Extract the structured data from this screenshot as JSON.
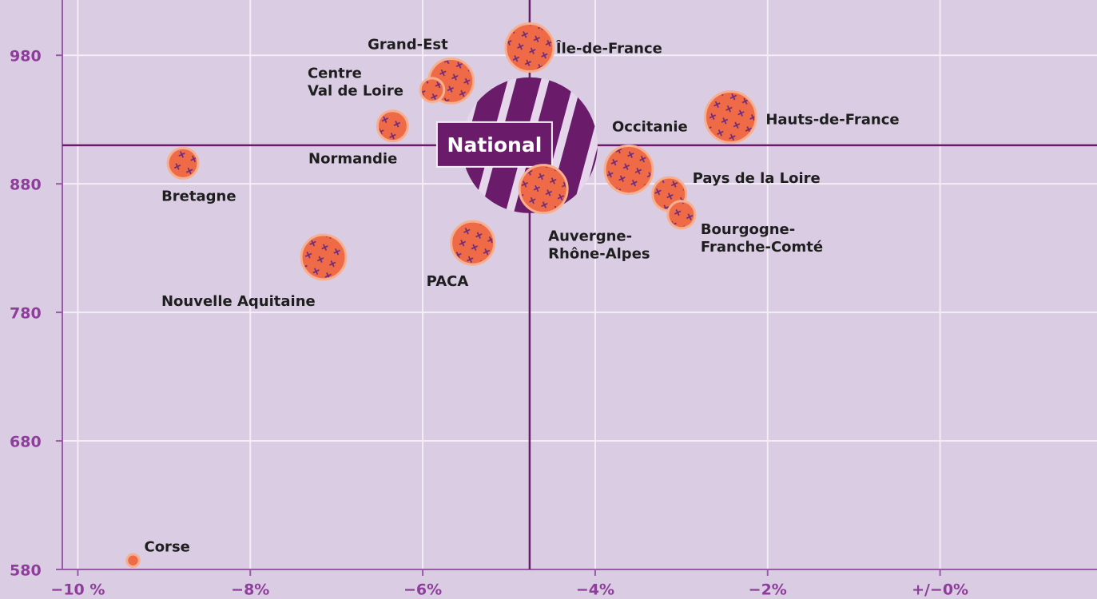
{
  "chart_data": {
    "type": "bubble",
    "xlim": [
      -10.18,
      1.82
    ],
    "ylim": [
      580,
      1023
    ],
    "xticks": [
      {
        "value": -10,
        "label": "−10 %"
      },
      {
        "value": -8,
        "label": "−8%"
      },
      {
        "value": -6,
        "label": "−6%"
      },
      {
        "value": -4,
        "label": "−4%"
      },
      {
        "value": -2,
        "label": "−2%"
      },
      {
        "value": 0,
        "label": "+/−0%"
      }
    ],
    "yticks": [
      580,
      680,
      780,
      880,
      980
    ],
    "grid": true,
    "color": "#ef6a47",
    "national": {
      "label": "National",
      "x": -4.76,
      "y": 910,
      "size": 722,
      "color": "#6a1c6a"
    },
    "points": [
      {
        "label": [
          "Île-de-France"
        ],
        "x": -4.76,
        "y": 986,
        "size": 90
      },
      {
        "label": [
          "Grand-Est"
        ],
        "x": -5.67,
        "y": 960,
        "size": 78
      },
      {
        "label": [
          "Centre",
          "Val de Loire"
        ],
        "x": -5.89,
        "y": 953,
        "size": 22
      },
      {
        "label": [
          "Normandie"
        ],
        "x": -6.35,
        "y": 925,
        "size": 36
      },
      {
        "label": [
          "Bretagne"
        ],
        "x": -8.78,
        "y": 896,
        "size": 36
      },
      {
        "label": [
          "Nouvelle Aquitaine"
        ],
        "x": -7.15,
        "y": 823,
        "size": 78
      },
      {
        "label": [
          "PACA"
        ],
        "x": -5.42,
        "y": 834,
        "size": 73
      },
      {
        "label": [
          "Auvergne-",
          "Rhône-Alpes"
        ],
        "x": -4.6,
        "y": 876,
        "size": 90
      },
      {
        "label": [
          "Occitanie"
        ],
        "x": -3.61,
        "y": 891,
        "size": 90
      },
      {
        "label": [
          "Hauts-de-France"
        ],
        "x": -2.43,
        "y": 932,
        "size": 102
      },
      {
        "label": [
          "Pays de la Loire"
        ],
        "x": -3.14,
        "y": 872,
        "size": 44
      },
      {
        "label": [
          "Bourgogne-",
          "Franche-Comté"
        ],
        "x": -3.0,
        "y": 856,
        "size": 29
      },
      {
        "label": [
          "Corse"
        ],
        "x": -9.36,
        "y": 587,
        "size": 6
      }
    ]
  }
}
